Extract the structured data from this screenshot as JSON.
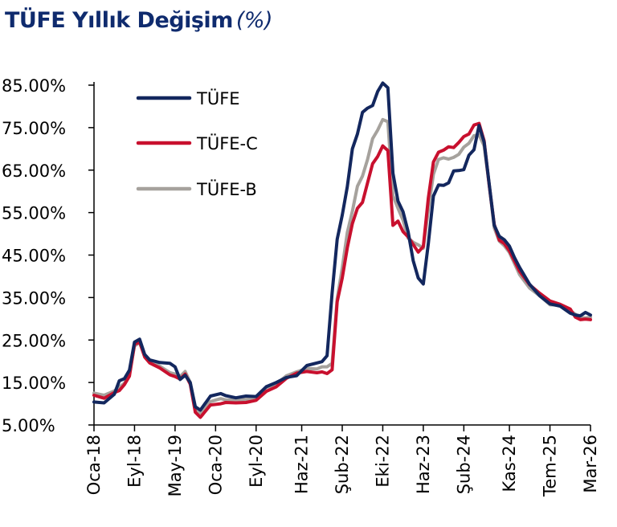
{
  "chart_data": {
    "type": "line",
    "title": "TÜFE Yıllık Değişim",
    "title_unit": "(%)",
    "xlabel": "",
    "ylabel": "",
    "ylim": [
      5,
      85
    ],
    "y_ticks": [
      5,
      15,
      25,
      35,
      45,
      55,
      65,
      75,
      85
    ],
    "y_tick_labels": [
      "5.00%",
      "15.00%",
      "25.00%",
      "35.00%",
      "45.00%",
      "55.00%",
      "65.00%",
      "75.00%",
      "85.00%"
    ],
    "x_ticks": [
      "2018-01",
      "2018-09",
      "2019-05",
      "2020-01",
      "2020-09",
      "2021-06",
      "2022-02",
      "2022-10",
      "2023-06",
      "2024-02",
      "2024-11",
      "2025-07",
      "2026-03"
    ],
    "x_tick_labels": [
      "Oca-18",
      "Eyl-18",
      "May-19",
      "Oca-20",
      "Eyl-20",
      "Haz-21",
      "Şub-22",
      "Eki-22",
      "Haz-23",
      "Şub-24",
      "Kas-24",
      "Tem-25",
      "Mar-26"
    ],
    "grid": false,
    "legend_position": "top-left",
    "series": [
      {
        "name": "TÜFE",
        "color": "#13275e",
        "x": [
          "2018-01",
          "2018-03",
          "2018-05",
          "2018-06",
          "2018-07",
          "2018-08",
          "2018-09",
          "2018-10",
          "2018-11",
          "2018-12",
          "2019-02",
          "2019-04",
          "2019-05",
          "2019-06",
          "2019-07",
          "2019-08",
          "2019-09",
          "2019-10",
          "2019-12",
          "2020-02",
          "2020-03",
          "2020-05",
          "2020-07",
          "2020-09",
          "2020-11",
          "2021-01",
          "2021-03",
          "2021-05",
          "2021-07",
          "2021-09",
          "2021-10",
          "2021-11",
          "2021-12",
          "2022-01",
          "2022-02",
          "2022-03",
          "2022-04",
          "2022-05",
          "2022-06",
          "2022-07",
          "2022-08",
          "2022-09",
          "2022-10",
          "2022-11",
          "2022-12",
          "2023-01",
          "2023-02",
          "2023-03",
          "2023-04",
          "2023-05",
          "2023-06",
          "2023-07",
          "2023-08",
          "2023-09",
          "2023-10",
          "2023-11",
          "2023-12",
          "2024-01",
          "2024-02",
          "2024-03",
          "2024-04",
          "2024-05",
          "2024-06",
          "2024-07",
          "2024-08",
          "2024-09",
          "2024-10",
          "2024-11",
          "2024-12",
          "2025-01",
          "2025-03",
          "2025-05",
          "2025-07",
          "2025-09",
          "2025-11",
          "2025-12",
          "2026-01",
          "2026-02",
          "2026-03"
        ],
        "values": [
          10.4,
          10.2,
          12.2,
          15.4,
          15.9,
          17.9,
          24.5,
          25.2,
          21.6,
          20.3,
          19.7,
          19.5,
          18.7,
          15.7,
          16.7,
          15.0,
          9.3,
          8.5,
          11.8,
          12.4,
          11.9,
          11.4,
          11.8,
          11.7,
          14.0,
          15.0,
          16.2,
          16.6,
          19.0,
          19.6,
          19.9,
          21.3,
          36.1,
          48.7,
          54.4,
          61.1,
          70.0,
          73.5,
          78.6,
          79.6,
          80.2,
          83.5,
          85.5,
          84.4,
          64.3,
          57.7,
          55.2,
          50.5,
          43.7,
          39.6,
          38.2,
          47.8,
          58.9,
          61.5,
          61.4,
          62.0,
          64.8,
          64.9,
          65.1,
          68.5,
          69.8,
          75.5,
          71.6,
          61.8,
          52.0,
          49.4,
          48.6,
          47.1,
          44.4,
          42.1,
          38.1,
          35.4,
          33.5,
          33.0,
          31.3,
          30.9,
          30.7,
          31.5,
          30.9
        ]
      },
      {
        "name": "TÜFE-C",
        "color": "#c8102e",
        "x": [
          "2018-01",
          "2018-03",
          "2018-05",
          "2018-06",
          "2018-07",
          "2018-08",
          "2018-09",
          "2018-10",
          "2018-11",
          "2018-12",
          "2019-02",
          "2019-04",
          "2019-05",
          "2019-06",
          "2019-07",
          "2019-08",
          "2019-09",
          "2019-10",
          "2019-12",
          "2020-02",
          "2020-03",
          "2020-05",
          "2020-07",
          "2020-09",
          "2020-11",
          "2021-01",
          "2021-03",
          "2021-05",
          "2021-07",
          "2021-09",
          "2021-10",
          "2021-11",
          "2021-12",
          "2022-01",
          "2022-02",
          "2022-03",
          "2022-04",
          "2022-05",
          "2022-06",
          "2022-07",
          "2022-08",
          "2022-09",
          "2022-10",
          "2022-11",
          "2022-12",
          "2023-01",
          "2023-02",
          "2023-03",
          "2023-04",
          "2023-05",
          "2023-06",
          "2023-07",
          "2023-08",
          "2023-09",
          "2023-10",
          "2023-11",
          "2023-12",
          "2024-01",
          "2024-02",
          "2024-03",
          "2024-04",
          "2024-05",
          "2024-06",
          "2024-07",
          "2024-08",
          "2024-09",
          "2024-10",
          "2024-11",
          "2024-12",
          "2025-01",
          "2025-03",
          "2025-05",
          "2025-07",
          "2025-09",
          "2025-11",
          "2025-12",
          "2026-01",
          "2026-02",
          "2026-03"
        ],
        "values": [
          12.0,
          11.3,
          12.6,
          13.1,
          14.5,
          16.5,
          24.0,
          24.5,
          21.0,
          19.6,
          18.4,
          16.8,
          16.4,
          15.8,
          17.0,
          14.6,
          8.0,
          6.8,
          9.7,
          10.0,
          10.3,
          10.2,
          10.3,
          10.8,
          12.9,
          14.0,
          16.0,
          17.2,
          17.6,
          17.3,
          17.5,
          17.1,
          18.0,
          34.0,
          39.6,
          46.7,
          52.4,
          56.0,
          57.4,
          62.0,
          66.5,
          68.2,
          70.7,
          69.6,
          52.0,
          53.0,
          50.5,
          49.3,
          47.5,
          45.7,
          47.0,
          58.5,
          66.9,
          69.2,
          69.7,
          70.5,
          70.3,
          71.5,
          72.9,
          73.5,
          75.6,
          76.0,
          71.9,
          61.5,
          52.2,
          48.5,
          47.7,
          46.0,
          43.6,
          41.2,
          38.0,
          36.0,
          34.2,
          33.4,
          32.3,
          30.4,
          29.8,
          29.9,
          29.8
        ]
      },
      {
        "name": "TÜFE-B",
        "color": "#a6a29d",
        "x": [
          "2018-01",
          "2018-03",
          "2018-05",
          "2018-06",
          "2018-07",
          "2018-08",
          "2018-09",
          "2018-10",
          "2018-11",
          "2018-12",
          "2019-02",
          "2019-04",
          "2019-05",
          "2019-06",
          "2019-07",
          "2019-08",
          "2019-09",
          "2019-10",
          "2019-12",
          "2020-02",
          "2020-03",
          "2020-05",
          "2020-07",
          "2020-09",
          "2020-11",
          "2021-01",
          "2021-03",
          "2021-05",
          "2021-07",
          "2021-09",
          "2021-10",
          "2021-11",
          "2021-12",
          "2022-01",
          "2022-02",
          "2022-03",
          "2022-04",
          "2022-05",
          "2022-06",
          "2022-07",
          "2022-08",
          "2022-09",
          "2022-10",
          "2022-11",
          "2022-12",
          "2023-01",
          "2023-02",
          "2023-03",
          "2023-04",
          "2023-05",
          "2023-06",
          "2023-07",
          "2023-08",
          "2023-09",
          "2023-10",
          "2023-11",
          "2023-12",
          "2024-01",
          "2024-02",
          "2024-03",
          "2024-04",
          "2024-05",
          "2024-06",
          "2024-07",
          "2024-08",
          "2024-09",
          "2024-10",
          "2024-11",
          "2024-12",
          "2025-01",
          "2025-03",
          "2025-05",
          "2025-07",
          "2025-09",
          "2025-11",
          "2025-12",
          "2026-01",
          "2026-02",
          "2026-03"
        ],
        "values": [
          12.5,
          12.0,
          13.0,
          13.9,
          14.8,
          17.0,
          23.6,
          24.4,
          21.5,
          19.9,
          18.8,
          17.3,
          17.0,
          16.4,
          17.6,
          15.0,
          8.7,
          7.8,
          10.5,
          11.2,
          10.9,
          10.8,
          11.0,
          11.2,
          13.8,
          14.6,
          16.6,
          17.5,
          18.3,
          18.2,
          18.7,
          18.7,
          19.5,
          34.7,
          42.0,
          50.3,
          55.3,
          61.2,
          63.6,
          67.5,
          72.4,
          74.4,
          76.9,
          76.4,
          59.0,
          56.0,
          53.2,
          49.0,
          48.0,
          47.4,
          46.6,
          55.8,
          64.0,
          67.5,
          67.9,
          67.6,
          68.0,
          68.7,
          70.4,
          71.3,
          73.1,
          73.3,
          70.7,
          61.6,
          51.4,
          48.3,
          47.2,
          45.6,
          43.0,
          40.4,
          37.2,
          35.4,
          33.3,
          33.2,
          31.9,
          31.1,
          30.3,
          30.2,
          30.4
        ]
      }
    ]
  }
}
